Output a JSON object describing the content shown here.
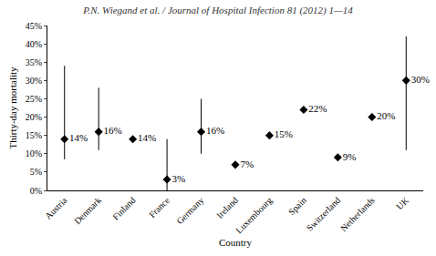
{
  "chart_data": {
    "type": "scatter",
    "title": "P.N. Wiegand et al. / Journal of Hospital Infection 81 (2012) 1—14",
    "x_label": "Country",
    "y_label": "Thirty-day mortality",
    "categories": [
      "Austria",
      "Denmark",
      "Finland",
      "France",
      "Germany",
      "Ireland",
      "Luxembourg",
      "Spain",
      "Switzerland",
      "Netherlands",
      "UK"
    ],
    "values": [
      14,
      16,
      14,
      3,
      16,
      7,
      15,
      22,
      9,
      20,
      30
    ],
    "value_labels": [
      "14%",
      "16%",
      "14%",
      "3%",
      "16%",
      "7%",
      "15%",
      "22%",
      "9%",
      "20%",
      "30%"
    ],
    "error_lower": [
      8.5,
      11,
      null,
      0,
      10,
      null,
      null,
      null,
      null,
      null,
      11
    ],
    "error_upper": [
      34,
      28,
      null,
      14,
      25,
      null,
      null,
      null,
      null,
      null,
      42
    ],
    "data_labels": true,
    "marker": "diamond",
    "color": "#000000",
    "grid": false,
    "ylim": [
      0,
      45
    ],
    "yticks": [
      {
        "value": 0,
        "label": "0%"
      },
      {
        "value": 5,
        "label": "5%"
      },
      {
        "value": 10,
        "label": "10%"
      },
      {
        "value": 15,
        "label": "15%"
      },
      {
        "value": 20,
        "label": "20%"
      },
      {
        "value": 25,
        "label": "25%"
      },
      {
        "value": 30,
        "label": "30%"
      },
      {
        "value": 35,
        "label": "35%"
      },
      {
        "value": 40,
        "label": "40%"
      },
      {
        "value": 45,
        "label": "45%"
      }
    ]
  }
}
